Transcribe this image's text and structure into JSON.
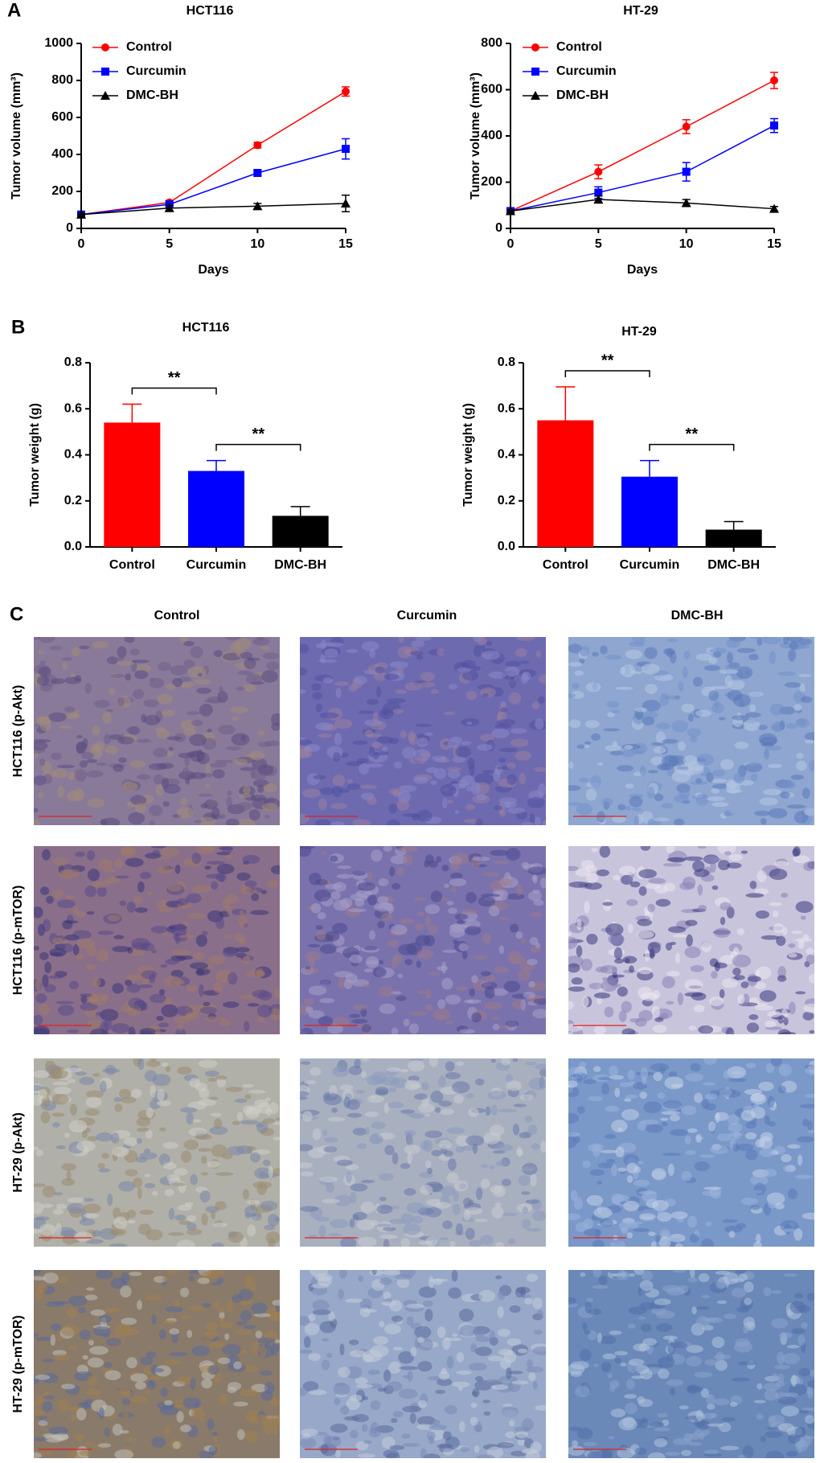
{
  "panel_labels": [
    "A",
    "B",
    "C"
  ],
  "chart_data": [
    {
      "type": "line",
      "title": "HCT116",
      "x_label": "Days",
      "y_label": "Tumor volume (mm³)",
      "x": [
        0,
        5,
        10,
        15
      ],
      "xlim": [
        0,
        15
      ],
      "xticks": [
        0,
        5,
        10,
        15
      ],
      "ylim": [
        0,
        1000
      ],
      "yticks": [
        0,
        200,
        400,
        600,
        800,
        1000
      ],
      "series": [
        {
          "name": "Control",
          "color": "#ff0000",
          "marker": "circle",
          "values": [
            75,
            140,
            450,
            740
          ],
          "errors": [
            5,
            10,
            15,
            25
          ]
        },
        {
          "name": "Curcumin",
          "color": "#0000ff",
          "marker": "square",
          "values": [
            75,
            130,
            300,
            430
          ],
          "errors": [
            5,
            10,
            15,
            55
          ]
        },
        {
          "name": "DMC-BH",
          "color": "#000000",
          "marker": "triangle",
          "values": [
            75,
            110,
            120,
            135
          ],
          "errors": [
            5,
            15,
            15,
            45
          ]
        }
      ]
    },
    {
      "type": "line",
      "title": "HT-29",
      "x_label": "Days",
      "y_label": "Tumor volume (mm³)",
      "x": [
        0,
        5,
        10,
        15
      ],
      "xlim": [
        0,
        15
      ],
      "xticks": [
        0,
        5,
        10,
        15
      ],
      "ylim": [
        0,
        800
      ],
      "yticks": [
        0,
        200,
        400,
        600,
        800
      ],
      "series": [
        {
          "name": "Control",
          "color": "#ff0000",
          "marker": "circle",
          "values": [
            75,
            245,
            440,
            640
          ],
          "errors": [
            5,
            30,
            30,
            35
          ]
        },
        {
          "name": "Curcumin",
          "color": "#0000ff",
          "marker": "square",
          "values": [
            75,
            155,
            245,
            445
          ],
          "errors": [
            5,
            25,
            40,
            30
          ]
        },
        {
          "name": "DMC-BH",
          "color": "#000000",
          "marker": "triangle",
          "values": [
            75,
            125,
            110,
            85
          ],
          "errors": [
            5,
            15,
            15,
            10
          ]
        }
      ]
    },
    {
      "type": "bar",
      "title": "HCT116",
      "y_label": "Tumor weight (g)",
      "categories": [
        "Control",
        "Curcumin",
        "DMC-BH"
      ],
      "values": [
        0.54,
        0.33,
        0.135
      ],
      "errors": [
        0.08,
        0.045,
        0.04
      ],
      "colors": [
        "#ff0000",
        "#0000ff",
        "#000000"
      ],
      "ylim": [
        0,
        0.8
      ],
      "yticks": [
        {
          "value": 0,
          "label": "0.0"
        },
        0.2,
        0.4,
        0.6,
        0.8
      ],
      "significance": [
        {
          "groups": [
            0,
            1
          ],
          "label": "**"
        },
        {
          "groups": [
            1,
            2
          ],
          "label": "**"
        }
      ]
    },
    {
      "type": "bar",
      "title": "HT-29",
      "y_label": "Tumor weight (g)",
      "categories": [
        "Control",
        "Curcumin",
        "DMC-BH"
      ],
      "values": [
        0.55,
        0.305,
        0.075
      ],
      "errors": [
        0.145,
        0.07,
        0.035
      ],
      "colors": [
        "#ff0000",
        "#0000ff",
        "#000000"
      ],
      "ylim": [
        0,
        0.8
      ],
      "yticks": [
        {
          "value": 0,
          "label": "0.0"
        },
        0.2,
        0.4,
        0.6,
        0.8
      ],
      "significance": [
        {
          "groups": [
            0,
            1
          ],
          "label": "**"
        },
        {
          "groups": [
            1,
            2
          ],
          "label": "**"
        }
      ]
    }
  ],
  "panel_c": {
    "columns": [
      "Control",
      "Curcumin",
      "DMC-BH"
    ],
    "rows": [
      "HCT116 (p-Akt)",
      "HCT116 (p-mTOR)",
      "HT-29 (p-Akt)",
      "HT-29 (p-mTOR)"
    ]
  }
}
